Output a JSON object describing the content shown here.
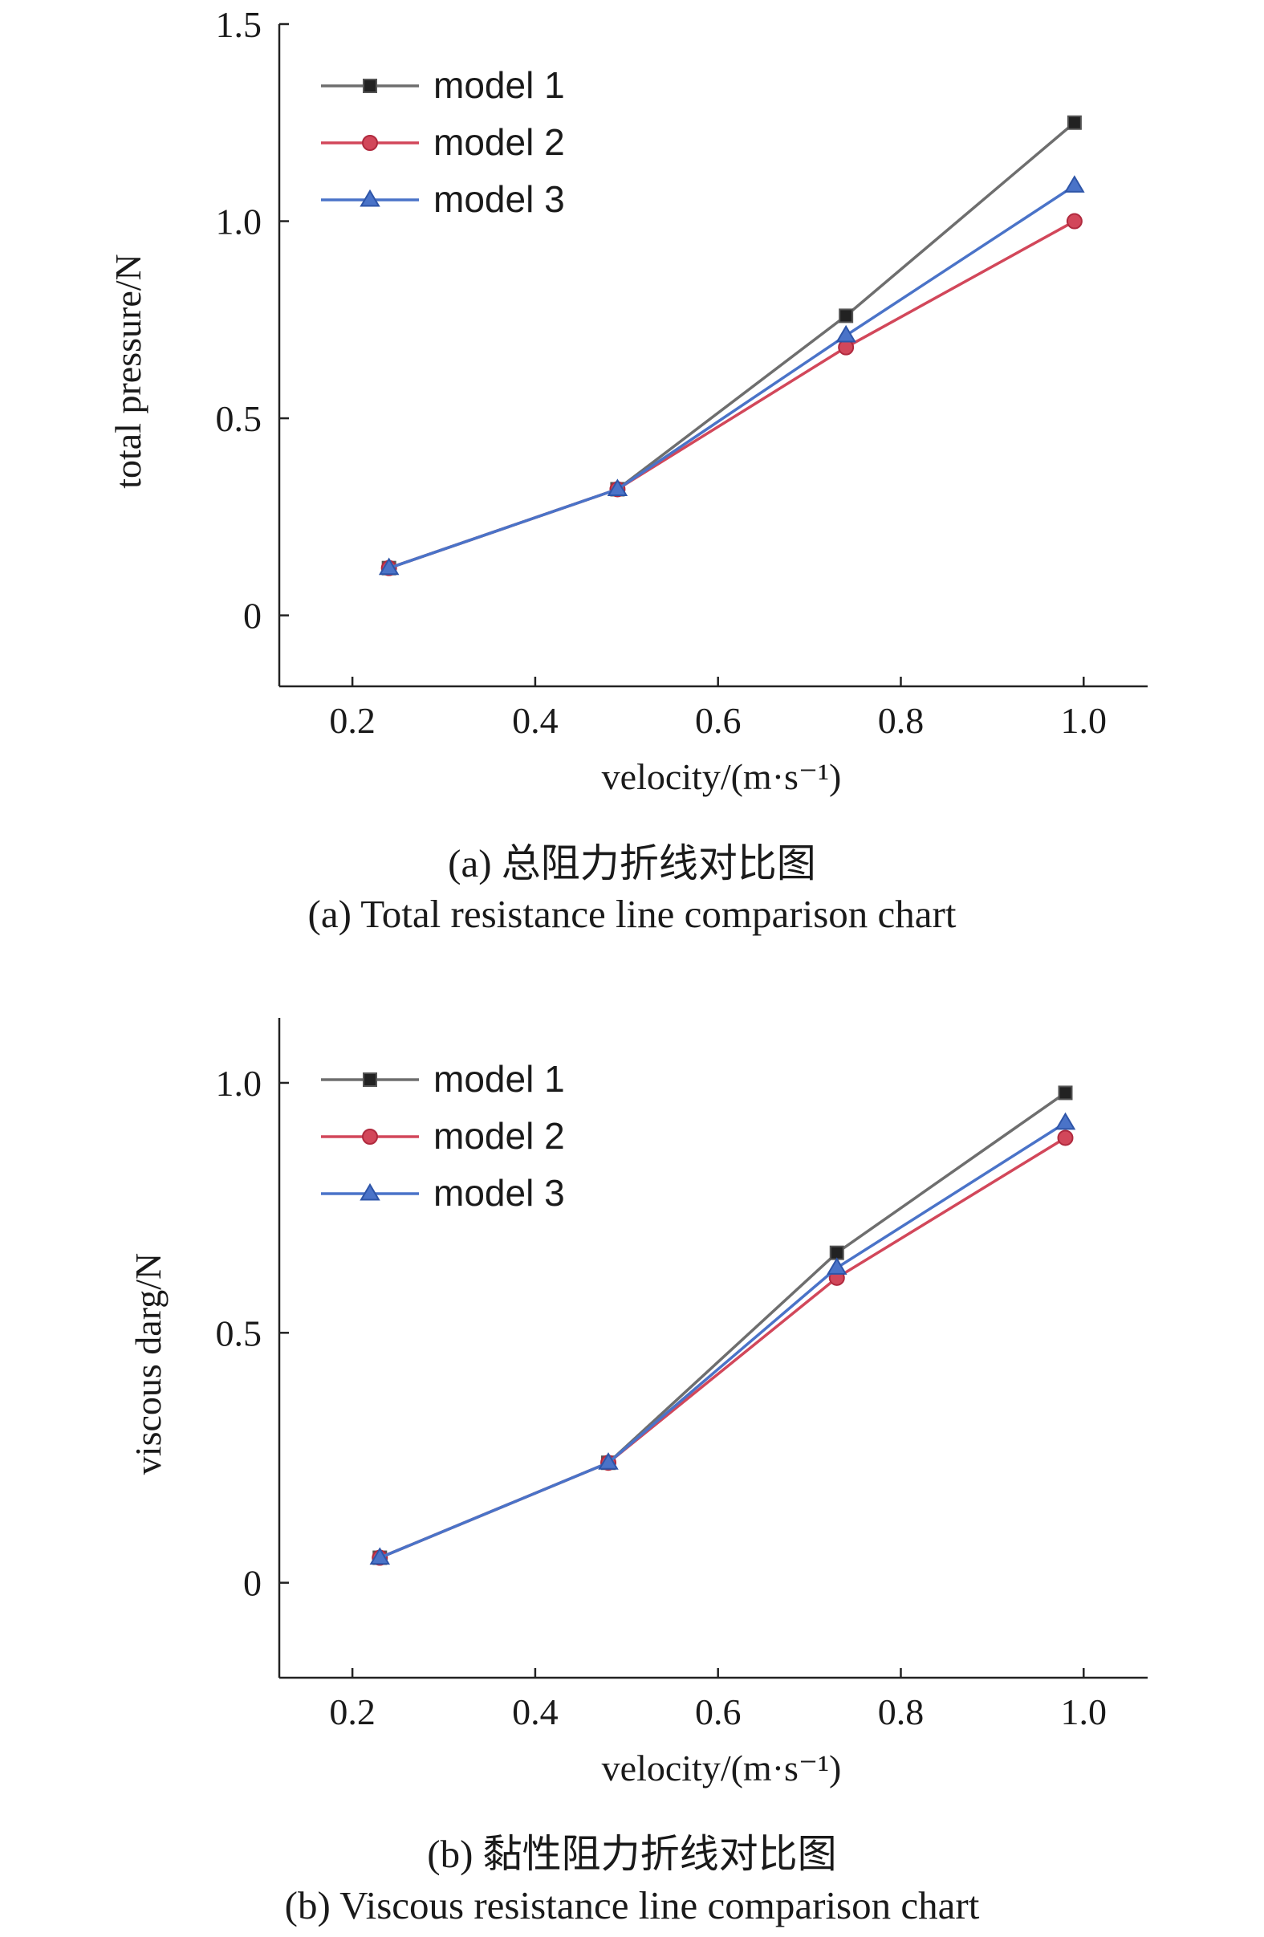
{
  "charts": [
    {
      "caption_cn": "(a) 总阻力折线对比图",
      "caption_en": "(a) Total resistance line comparison chart"
    },
    {
      "caption_cn": "(b) 黏性阻力折线对比图",
      "caption_en": "(b) Viscous resistance line comparison chart"
    }
  ],
  "colors": {
    "model1": "#6e6e6e",
    "model2": "#d2475a",
    "model3": "#4a73c8"
  },
  "chart_data": [
    {
      "type": "line",
      "xlabel": "velocity/(m·s⁻¹)",
      "ylabel": "total pressure/N",
      "xlim": [
        0.12,
        1.07
      ],
      "ylim": [
        -0.18,
        1.5
      ],
      "xticks": [
        "0.2",
        "0.4",
        "0.6",
        "0.8",
        "1.0"
      ],
      "xtick_values": [
        0.2,
        0.4,
        0.6,
        0.8,
        1.0
      ],
      "yticks": [
        "0",
        "0.5",
        "1.0",
        "1.5"
      ],
      "ytick_values": [
        0,
        0.5,
        1.0,
        1.5
      ],
      "legend_position": "top-left",
      "series": [
        {
          "name": "model 1",
          "marker": "square",
          "color": "#6e6e6e",
          "x": [
            0.24,
            0.49,
            0.74,
            0.99
          ],
          "values": [
            0.12,
            0.32,
            0.76,
            1.25
          ]
        },
        {
          "name": "model 2",
          "marker": "circle",
          "color": "#d2475a",
          "x": [
            0.24,
            0.49,
            0.74,
            0.99
          ],
          "values": [
            0.12,
            0.32,
            0.68,
            1.0
          ]
        },
        {
          "name": "model 3",
          "marker": "triangle",
          "color": "#4a73c8",
          "x": [
            0.24,
            0.49,
            0.74,
            0.99
          ],
          "values": [
            0.12,
            0.32,
            0.71,
            1.09
          ]
        }
      ]
    },
    {
      "type": "line",
      "xlabel": "velocity/(m·s⁻¹)",
      "ylabel": "viscous darg/N",
      "xlim": [
        0.12,
        1.07
      ],
      "ylim": [
        -0.19,
        1.13
      ],
      "xticks": [
        "0.2",
        "0.4",
        "0.6",
        "0.8",
        "1.0"
      ],
      "xtick_values": [
        0.2,
        0.4,
        0.6,
        0.8,
        1.0
      ],
      "yticks": [
        "0",
        "0.5",
        "1.0"
      ],
      "ytick_values": [
        0,
        0.5,
        1.0
      ],
      "legend_position": "top-left",
      "series": [
        {
          "name": "model 1",
          "marker": "square",
          "color": "#6e6e6e",
          "x": [
            0.23,
            0.48,
            0.73,
            0.98
          ],
          "values": [
            0.05,
            0.24,
            0.66,
            0.98
          ]
        },
        {
          "name": "model 2",
          "marker": "circle",
          "color": "#d2475a",
          "x": [
            0.23,
            0.48,
            0.73,
            0.98
          ],
          "values": [
            0.05,
            0.24,
            0.61,
            0.89
          ]
        },
        {
          "name": "model 3",
          "marker": "triangle",
          "color": "#4a73c8",
          "x": [
            0.23,
            0.48,
            0.73,
            0.98
          ],
          "values": [
            0.05,
            0.24,
            0.63,
            0.92
          ]
        }
      ]
    }
  ]
}
